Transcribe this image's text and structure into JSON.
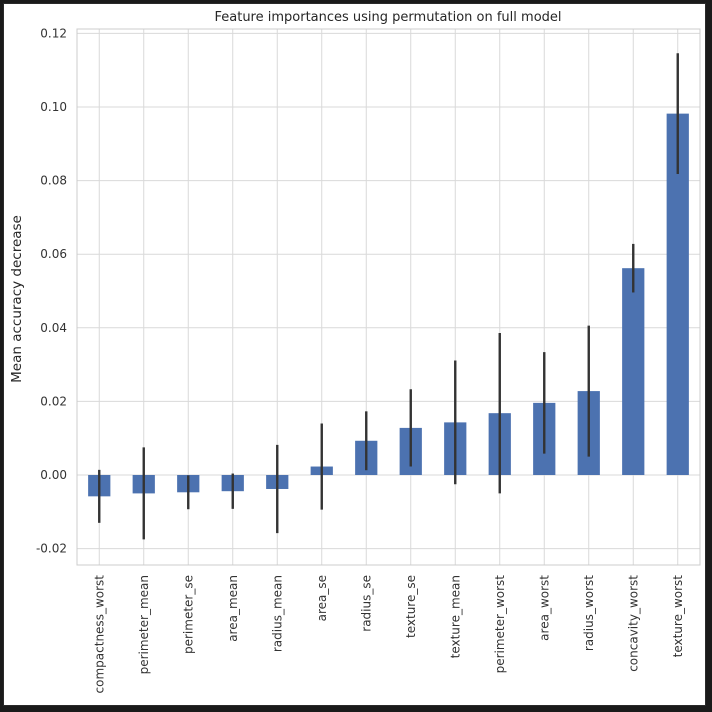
{
  "chart_data": {
    "type": "bar",
    "title": "Feature importances using permutation on full model",
    "xlabel": "",
    "ylabel": "Mean accuracy decrease",
    "ylim": [
      -0.025,
      0.122
    ],
    "yticks": [
      "-0.02",
      "0.00",
      "0.02",
      "0.04",
      "0.06",
      "0.08",
      "0.10",
      "0.12"
    ],
    "ytick_values": [
      -0.02,
      0.0,
      0.02,
      0.04,
      0.06,
      0.08,
      0.1,
      0.12
    ],
    "grid": true,
    "bar_color": "#4c72b0",
    "error_color": "#333333",
    "categories": [
      "compactness_worst",
      "perimeter_mean",
      "perimeter_se",
      "area_mean",
      "radius_mean",
      "area_se",
      "radius_se",
      "texture_se",
      "texture_mean",
      "perimeter_worst",
      "area_worst",
      "radius_worst",
      "concavity_worst",
      "texture_worst"
    ],
    "values": [
      -0.0058,
      -0.005,
      -0.0047,
      -0.0044,
      -0.0038,
      0.0023,
      0.0093,
      0.0128,
      0.0143,
      0.0168,
      0.0196,
      0.0228,
      0.0562,
      0.0982
    ],
    "errors": [
      0.0072,
      0.0125,
      0.0046,
      0.0048,
      0.012,
      0.0117,
      0.008,
      0.0105,
      0.0168,
      0.0218,
      0.0138,
      0.0178,
      0.0066,
      0.0164
    ]
  }
}
